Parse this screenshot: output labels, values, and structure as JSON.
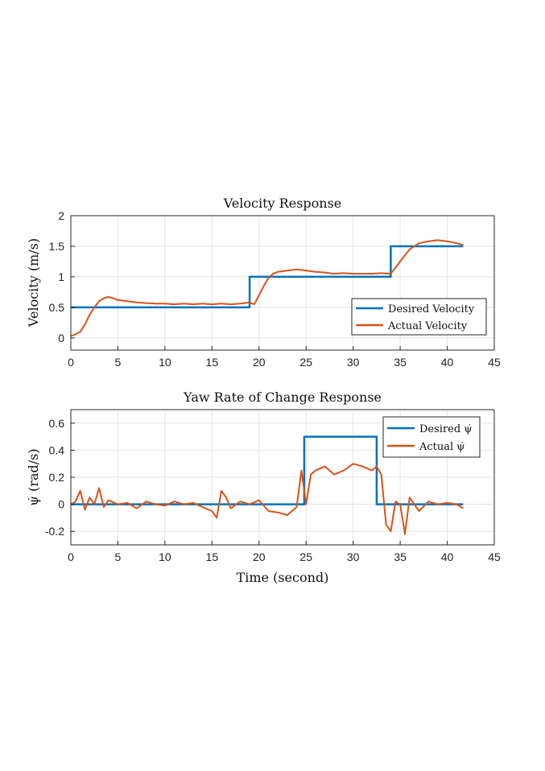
{
  "chart_data": [
    {
      "type": "line",
      "title": "Velocity Response",
      "xlabel": "",
      "ylabel": "Velocity (m/s)",
      "xlim": [
        0,
        45
      ],
      "ylim": [
        -0.2,
        2
      ],
      "xticks": [
        0,
        5,
        10,
        15,
        20,
        25,
        30,
        35,
        40,
        45
      ],
      "yticks": [
        0,
        0.5,
        1,
        1.5,
        2
      ],
      "xtick_labels": [
        "0",
        "5",
        "10",
        "15",
        "20",
        "25",
        "30",
        "35",
        "40",
        "45"
      ],
      "ytick_labels": [
        "0",
        "0.5",
        "1",
        "1.5",
        "2"
      ],
      "grid": true,
      "legend": "bottom-right",
      "series": [
        {
          "name": "Desired Velocity",
          "color": "#0072BD",
          "x": [
            0,
            19,
            19,
            34,
            34,
            41.7
          ],
          "y": [
            0.5,
            0.5,
            1.0,
            1.0,
            1.5,
            1.5
          ]
        },
        {
          "name": "Actual Velocity",
          "color": "#D95319",
          "x": [
            0,
            0.5,
            1,
            1.5,
            2,
            2.5,
            3,
            3.5,
            4,
            4.5,
            5,
            6,
            7,
            8,
            9,
            10,
            11,
            12,
            13,
            14,
            15,
            16,
            17,
            18,
            18.5,
            19,
            19.5,
            20,
            20.5,
            21,
            21.5,
            22,
            23,
            24,
            25,
            26,
            27,
            28,
            29,
            30,
            31,
            32,
            33,
            34,
            35,
            36,
            37,
            38,
            39,
            40,
            41,
            41.7
          ],
          "y": [
            0.03,
            0.06,
            0.1,
            0.22,
            0.38,
            0.5,
            0.6,
            0.65,
            0.67,
            0.65,
            0.62,
            0.6,
            0.58,
            0.57,
            0.56,
            0.56,
            0.55,
            0.56,
            0.55,
            0.56,
            0.55,
            0.56,
            0.55,
            0.56,
            0.57,
            0.58,
            0.55,
            0.7,
            0.85,
            0.98,
            1.05,
            1.08,
            1.1,
            1.12,
            1.1,
            1.08,
            1.07,
            1.05,
            1.06,
            1.05,
            1.05,
            1.05,
            1.06,
            1.05,
            1.25,
            1.45,
            1.55,
            1.58,
            1.6,
            1.58,
            1.55,
            1.52
          ]
        }
      ]
    },
    {
      "type": "line",
      "title": "Yaw Rate of Change Response",
      "xlabel": "Time (second)",
      "ylabel": "ψ̇ (rad/s)",
      "xlim": [
        0,
        45
      ],
      "ylim": [
        -0.3,
        0.7
      ],
      "xticks": [
        0,
        5,
        10,
        15,
        20,
        25,
        30,
        35,
        40,
        45
      ],
      "yticks": [
        -0.2,
        0,
        0.2,
        0.4,
        0.6
      ],
      "xtick_labels": [
        "0",
        "5",
        "10",
        "15",
        "20",
        "25",
        "30",
        "35",
        "40",
        "45"
      ],
      "ytick_labels": [
        "-0.2",
        "0",
        "0.2",
        "0.4",
        "0.6"
      ],
      "grid": true,
      "legend": "top-right",
      "series": [
        {
          "name": "Desired ψ̇",
          "color": "#0072BD",
          "x": [
            0,
            24.8,
            24.8,
            32.5,
            32.5,
            41.7
          ],
          "y": [
            0,
            0,
            0.5,
            0.5,
            0,
            0
          ]
        },
        {
          "name": "Actual ψ̇",
          "color": "#D95319",
          "x": [
            0,
            0.5,
            1,
            1.5,
            2,
            2.5,
            3,
            3.5,
            4,
            5,
            6,
            7,
            8,
            9,
            10,
            11,
            12,
            13,
            14,
            15,
            15.5,
            16,
            16.5,
            17,
            18,
            19,
            20,
            21,
            22,
            23,
            24,
            24.5,
            25,
            25.5,
            26,
            27,
            28,
            29,
            30,
            31,
            32,
            32.5,
            33,
            33.5,
            34,
            34.5,
            35,
            35.5,
            36,
            37,
            38,
            39,
            40,
            41,
            41.7
          ],
          "y": [
            0,
            0.02,
            0.1,
            -0.04,
            0.05,
            0.0,
            0.12,
            -0.02,
            0.03,
            0.0,
            0.01,
            -0.03,
            0.02,
            0.0,
            -0.01,
            0.02,
            0.0,
            0.01,
            -0.02,
            -0.05,
            -0.1,
            0.1,
            0.05,
            -0.03,
            0.02,
            0.0,
            0.03,
            -0.05,
            -0.06,
            -0.08,
            -0.02,
            0.25,
            0.0,
            0.22,
            0.25,
            0.28,
            0.22,
            0.25,
            0.3,
            0.28,
            0.25,
            0.28,
            0.22,
            -0.15,
            -0.2,
            0.02,
            0.0,
            -0.22,
            0.05,
            -0.05,
            0.02,
            0.0,
            0.01,
            0.0,
            -0.03
          ]
        }
      ]
    }
  ]
}
